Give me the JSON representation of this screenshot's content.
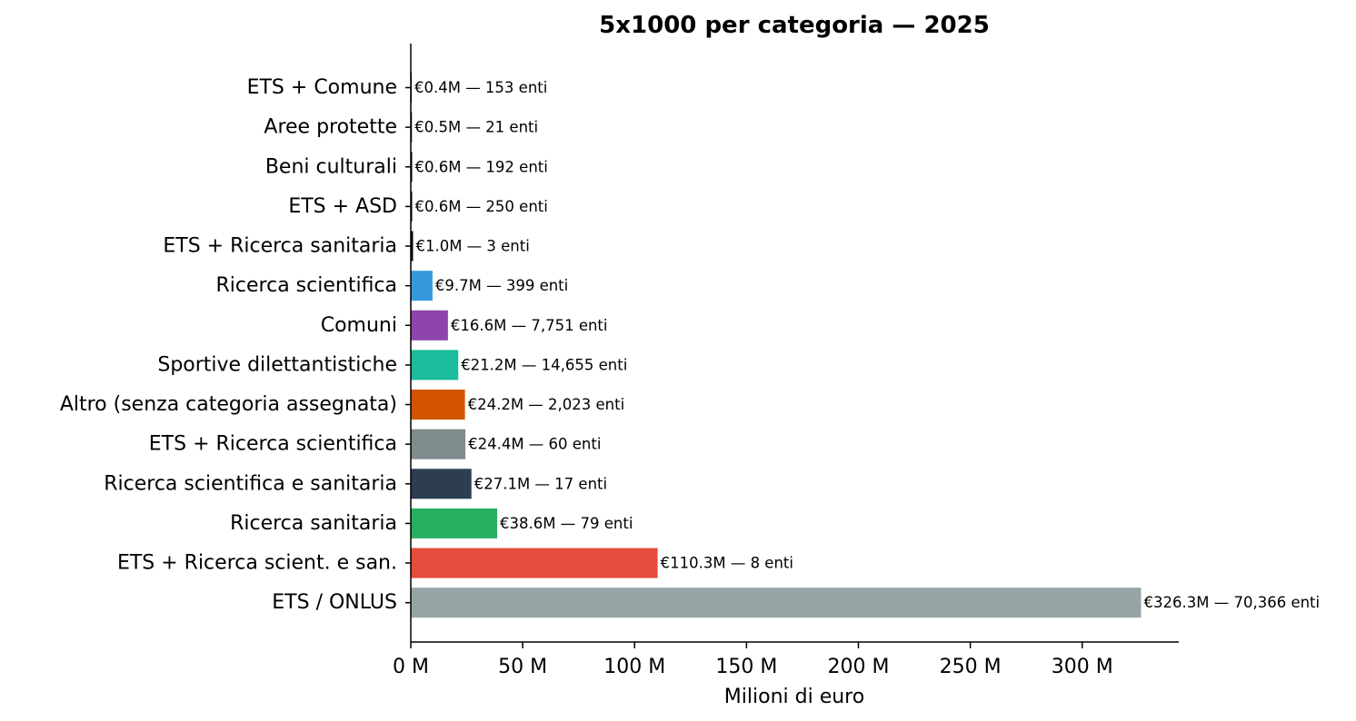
{
  "chart_data": {
    "type": "bar",
    "orientation": "horizontal",
    "title": "5x1000 per categoria — 2025",
    "xlabel": "Milioni di euro",
    "ylabel": "",
    "xlim": [
      0,
      343
    ],
    "xticks": [
      0,
      50,
      100,
      150,
      200,
      250,
      300
    ],
    "xtick_labels": [
      "0 M",
      "50 M",
      "100 M",
      "150 M",
      "200 M",
      "250 M",
      "300 M"
    ],
    "grid": false,
    "categories": [
      "ETS + Comune",
      "Aree protette",
      "Beni culturali",
      "ETS + ASD",
      "ETS + Ricerca sanitaria",
      "Ricerca scientifica",
      "Comuni",
      "Sportive dilettantistiche",
      "Altro (senza categoria assegnata)",
      "ETS + Ricerca scientifica",
      "Ricerca scientifica e sanitaria",
      "Ricerca sanitaria",
      "ETS + Ricerca scient. e san.",
      "ETS / ONLUS"
    ],
    "values": [
      0.4,
      0.5,
      0.6,
      0.6,
      1.0,
      9.7,
      16.6,
      21.2,
      24.2,
      24.4,
      27.1,
      38.6,
      110.3,
      326.3
    ],
    "enti": [
      153,
      21,
      192,
      250,
      3,
      399,
      7751,
      14655,
      2023,
      60,
      17,
      79,
      8,
      70366
    ],
    "data_labels": [
      "€0.4M — 153 enti",
      "€0.5M — 21 enti",
      "€0.6M — 192 enti",
      "€0.6M — 250 enti",
      "€1.0M — 3 enti",
      "€9.7M — 399 enti",
      "€16.6M — 7,751 enti",
      "€21.2M — 14,655 enti",
      "€24.2M — 2,023 enti",
      "€24.4M — 60 enti",
      "€27.1M — 17 enti",
      "€38.6M — 79 enti",
      "€110.3M — 8 enti",
      "€326.3M — 70,366 enti"
    ],
    "colors": [
      "#000000",
      "#000000",
      "#000000",
      "#000000",
      "#000000",
      "#3498db",
      "#8e44ad",
      "#1abc9c",
      "#d35400",
      "#7f8c8d",
      "#2c3e50",
      "#27ae60",
      "#e74c3c",
      "#95a5a6"
    ]
  }
}
